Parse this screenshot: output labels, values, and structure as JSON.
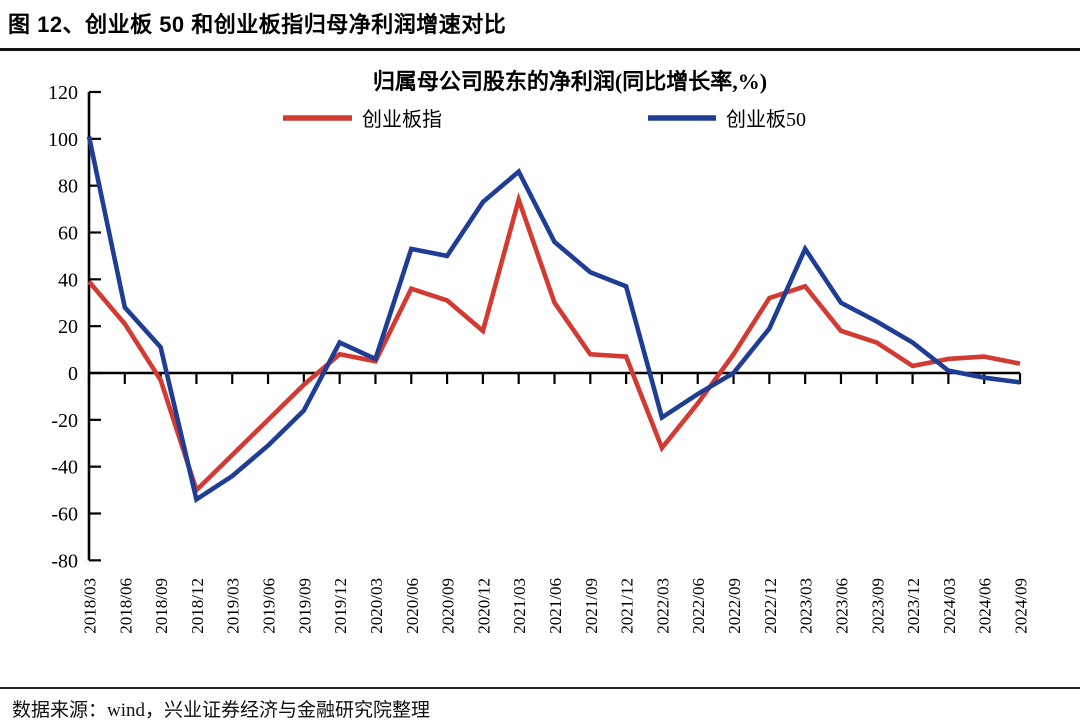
{
  "header": {
    "title": "图 12、创业板 50 和创业板指归母净利润增速对比"
  },
  "footer": {
    "source": "数据来源：wind，兴业证券经济与金融研究院整理"
  },
  "chart_data": {
    "type": "line",
    "title": "归属母公司股东的净利润(同比增长率,%)",
    "categories": [
      "2018/03",
      "2018/06",
      "2018/09",
      "2018/12",
      "2019/03",
      "2019/06",
      "2019/09",
      "2019/12",
      "2020/03",
      "2020/06",
      "2020/09",
      "2020/12",
      "2021/03",
      "2021/06",
      "2021/09",
      "2021/12",
      "2022/03",
      "2022/06",
      "2022/09",
      "2022/12",
      "2023/03",
      "2023/06",
      "2023/09",
      "2023/12",
      "2024/03",
      "2024/06",
      "2024/09"
    ],
    "series": [
      {
        "name": "创业板指",
        "color": "#d23a32",
        "values": [
          39,
          21,
          -3,
          -50,
          -35,
          -20,
          -5,
          8,
          5,
          36,
          31,
          18,
          74,
          30,
          8,
          7,
          -32,
          -13,
          8,
          32,
          37,
          18,
          13,
          3,
          6,
          7,
          4
        ]
      },
      {
        "name": "创业板50",
        "color": "#203d94",
        "values": [
          101,
          28,
          11,
          -54,
          -44,
          -31,
          -16,
          13,
          6,
          53,
          50,
          73,
          86,
          56,
          43,
          37,
          -19,
          -9,
          0,
          19,
          53,
          30,
          22,
          13,
          1,
          -2,
          -4
        ]
      }
    ],
    "ylim": [
      -80,
      120
    ],
    "ytick_step": 20,
    "grid": false,
    "legend_position": "top",
    "axis_color": "#000000"
  }
}
